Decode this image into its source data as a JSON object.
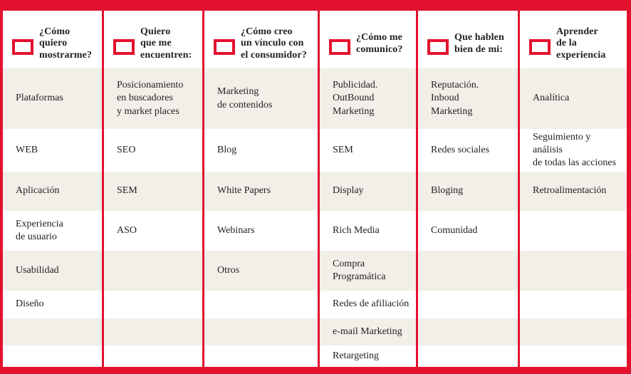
{
  "theme": {
    "accent_red": "#e2122f",
    "row_beige": "#f2efe8",
    "text_color": "#222222",
    "background": "#ffffff"
  },
  "icons": {
    "header_marker": "checkbox-icon"
  },
  "columns": [
    {
      "id": "como-quiero-mostrarme",
      "header": "¿Cómo\nquiero\nmostrarme?",
      "cells": [
        "Plataformas",
        "WEB",
        "Aplicación",
        "Experiencia\nde usuario",
        "Usabilidad",
        "Diseño",
        "",
        ""
      ]
    },
    {
      "id": "quiero-que-me-encuentren",
      "header": "Quiero\nque me\nencuentren:",
      "cells": [
        "Posicionamiento\nen buscadores\ny market places",
        "SEO",
        "SEM",
        "ASO",
        "",
        "",
        "",
        ""
      ]
    },
    {
      "id": "vinculo-con-el-consumidor",
      "header": "¿Cómo creo\nun vínculo con\nel consumidor?",
      "cells": [
        "Marketing\nde contenidos",
        "Blog",
        "White Papers",
        "Webinars",
        "Otros",
        "",
        "",
        ""
      ]
    },
    {
      "id": "como-me-comunico",
      "header": "¿Cómo me\ncomunico?",
      "cells": [
        "Publicidad.\nOutBound\nMarketing",
        "SEM",
        "Display",
        "Rich Media",
        "Compra\nProgramática",
        "Redes de afiliación",
        "e-mail Marketing",
        "Retargeting"
      ]
    },
    {
      "id": "que-hablen-bien-de-mi",
      "header": "Que hablen\nbien de mi:",
      "cells": [
        "Reputación.\nInboud\nMarketing",
        "Redes sociales",
        "Bloging",
        "Comunidad",
        "",
        "",
        "",
        ""
      ]
    },
    {
      "id": "aprender-de-la-experiencia",
      "header": "Aprender\nde la\nexperiencia",
      "cells": [
        "Analítica",
        "Seguimiento y análisis\nde todas las acciones",
        "Retroalimentación",
        "",
        "",
        "",
        "",
        ""
      ]
    }
  ]
}
